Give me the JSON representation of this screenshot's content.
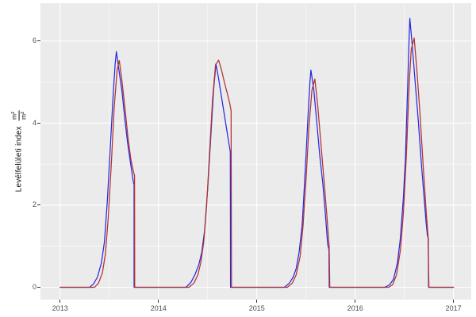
{
  "chart_data": {
    "type": "line",
    "title": "",
    "xlabel": "",
    "ylabel": {
      "text": "Levélfelületi index",
      "unit_numerator": "m²",
      "unit_denominator": "m²"
    },
    "x_range": [
      2012.8,
      2017.18
    ],
    "y_range": [
      -0.3,
      6.92
    ],
    "x_major_ticks": [
      {
        "value": 2013,
        "label": "2013"
      },
      {
        "value": 2014,
        "label": "2014"
      },
      {
        "value": 2015,
        "label": "2015"
      },
      {
        "value": 2016,
        "label": "2016"
      },
      {
        "value": 2017,
        "label": "2017"
      }
    ],
    "x_minor_ticks": [
      2013.5,
      2014.5,
      2015.5,
      2016.5
    ],
    "y_major_ticks": [
      {
        "value": 0,
        "label": "0"
      },
      {
        "value": 2,
        "label": "2"
      },
      {
        "value": 4,
        "label": "4"
      },
      {
        "value": 6,
        "label": "6"
      }
    ],
    "y_minor_ticks": [
      1,
      3,
      5
    ],
    "grid": true,
    "legend_position": "none",
    "colors": {
      "panel_bg": "#EBEBEB",
      "grid_major": "#FFFFFF",
      "grid_minor": "#FFFFFF",
      "tick_text": "#4D4D4D",
      "tick_mark": "#333333",
      "blue": "#2929E0",
      "red": "#B23030"
    },
    "series": [
      {
        "name": "blue-series",
        "color_key": "blue",
        "points": [
          [
            2013.0,
            0
          ],
          [
            2013.3,
            0
          ],
          [
            2013.34,
            0.08
          ],
          [
            2013.38,
            0.25
          ],
          [
            2013.42,
            0.6
          ],
          [
            2013.45,
            1.1
          ],
          [
            2013.48,
            2.1
          ],
          [
            2013.51,
            3.4
          ],
          [
            2013.54,
            4.7
          ],
          [
            2013.56,
            5.45
          ],
          [
            2013.572,
            5.74
          ],
          [
            2013.6,
            5.25
          ],
          [
            2013.63,
            4.75
          ],
          [
            2013.66,
            4.05
          ],
          [
            2013.69,
            3.45
          ],
          [
            2013.72,
            2.95
          ],
          [
            2013.745,
            2.55
          ],
          [
            2013.752,
            2.5
          ],
          [
            2013.752,
            0
          ],
          [
            2014.28,
            0
          ],
          [
            2014.33,
            0.12
          ],
          [
            2014.37,
            0.3
          ],
          [
            2014.41,
            0.55
          ],
          [
            2014.44,
            0.85
          ],
          [
            2014.47,
            1.4
          ],
          [
            2014.5,
            2.4
          ],
          [
            2014.53,
            3.6
          ],
          [
            2014.56,
            4.8
          ],
          [
            2014.584,
            5.44
          ],
          [
            2014.61,
            5.1
          ],
          [
            2014.64,
            4.65
          ],
          [
            2014.67,
            4.2
          ],
          [
            2014.7,
            3.75
          ],
          [
            2014.72,
            3.45
          ],
          [
            2014.73,
            3.3
          ],
          [
            2014.733,
            0
          ],
          [
            2015.28,
            0
          ],
          [
            2015.33,
            0.1
          ],
          [
            2015.37,
            0.25
          ],
          [
            2015.4,
            0.45
          ],
          [
            2015.43,
            0.85
          ],
          [
            2015.46,
            1.5
          ],
          [
            2015.48,
            2.3
          ],
          [
            2015.5,
            3.2
          ],
          [
            2015.52,
            4.15
          ],
          [
            2015.54,
            5.0
          ],
          [
            2015.55,
            5.29
          ],
          [
            2015.58,
            4.8
          ],
          [
            2015.61,
            4.0
          ],
          [
            2015.64,
            3.2
          ],
          [
            2015.67,
            2.55
          ],
          [
            2015.7,
            1.7
          ],
          [
            2015.72,
            1.05
          ],
          [
            2015.733,
            0.92
          ],
          [
            2015.736,
            0
          ],
          [
            2016.3,
            0
          ],
          [
            2016.35,
            0.06
          ],
          [
            2016.39,
            0.2
          ],
          [
            2016.43,
            0.6
          ],
          [
            2016.46,
            1.2
          ],
          [
            2016.49,
            2.2
          ],
          [
            2016.51,
            3.1
          ],
          [
            2016.53,
            4.6
          ],
          [
            2016.55,
            6.2
          ],
          [
            2016.556,
            6.55
          ],
          [
            2016.58,
            5.9
          ],
          [
            2016.61,
            5.0
          ],
          [
            2016.64,
            4.1
          ],
          [
            2016.67,
            3.1
          ],
          [
            2016.7,
            2.2
          ],
          [
            2016.72,
            1.6
          ],
          [
            2016.735,
            1.25
          ],
          [
            2016.744,
            1.2
          ],
          [
            2016.746,
            0
          ],
          [
            2017.0,
            0
          ]
        ]
      },
      {
        "name": "red-series",
        "color_key": "red",
        "points": [
          [
            2013.0,
            0
          ],
          [
            2013.35,
            0
          ],
          [
            2013.39,
            0.1
          ],
          [
            2013.43,
            0.35
          ],
          [
            2013.46,
            0.8
          ],
          [
            2013.49,
            1.7
          ],
          [
            2013.52,
            3.0
          ],
          [
            2013.55,
            4.4
          ],
          [
            2013.58,
            5.3
          ],
          [
            2013.602,
            5.52
          ],
          [
            2013.63,
            5.0
          ],
          [
            2013.66,
            4.35
          ],
          [
            2013.69,
            3.65
          ],
          [
            2013.72,
            3.1
          ],
          [
            2013.745,
            2.82
          ],
          [
            2013.757,
            2.72
          ],
          [
            2013.758,
            0
          ],
          [
            2014.31,
            0
          ],
          [
            2014.36,
            0.1
          ],
          [
            2014.4,
            0.3
          ],
          [
            2014.43,
            0.6
          ],
          [
            2014.46,
            1.1
          ],
          [
            2014.49,
            2.0
          ],
          [
            2014.52,
            3.3
          ],
          [
            2014.55,
            4.6
          ],
          [
            2014.58,
            5.42
          ],
          [
            2014.612,
            5.53
          ],
          [
            2014.64,
            5.3
          ],
          [
            2014.67,
            5.0
          ],
          [
            2014.7,
            4.72
          ],
          [
            2014.725,
            4.48
          ],
          [
            2014.738,
            4.3
          ],
          [
            2014.742,
            0
          ],
          [
            2015.31,
            0
          ],
          [
            2015.36,
            0.1
          ],
          [
            2015.4,
            0.3
          ],
          [
            2015.44,
            0.75
          ],
          [
            2015.47,
            1.5
          ],
          [
            2015.5,
            2.6
          ],
          [
            2015.53,
            3.9
          ],
          [
            2015.56,
            4.8
          ],
          [
            2015.59,
            5.07
          ],
          [
            2015.62,
            4.4
          ],
          [
            2015.65,
            3.55
          ],
          [
            2015.68,
            2.7
          ],
          [
            2015.71,
            1.8
          ],
          [
            2015.735,
            1.0
          ],
          [
            2015.742,
            0
          ],
          [
            2016.34,
            0
          ],
          [
            2016.38,
            0.06
          ],
          [
            2016.42,
            0.3
          ],
          [
            2016.46,
            0.9
          ],
          [
            2016.49,
            1.8
          ],
          [
            2016.52,
            3.2
          ],
          [
            2016.55,
            5.0
          ],
          [
            2016.57,
            5.8
          ],
          [
            2016.6,
            6.07
          ],
          [
            2016.63,
            5.2
          ],
          [
            2016.66,
            4.2
          ],
          [
            2016.69,
            3.0
          ],
          [
            2016.72,
            1.9
          ],
          [
            2016.74,
            1.25
          ],
          [
            2016.75,
            0
          ],
          [
            2017.0,
            0
          ]
        ]
      }
    ]
  }
}
